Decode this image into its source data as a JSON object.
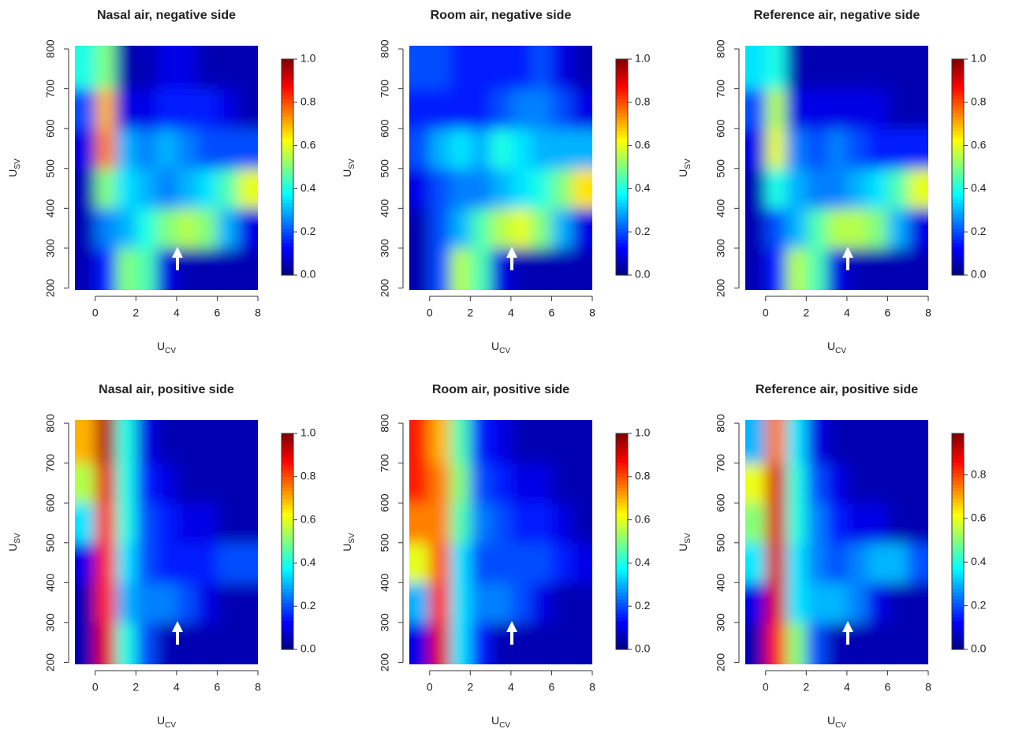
{
  "chart_data": [
    {
      "type": "heatmap",
      "title": "Nasal air, negative side",
      "xlabel": {
        "text": "U",
        "sub": "CV"
      },
      "ylabel": {
        "text": "U",
        "sub": "SV"
      },
      "xlim": [
        -1,
        8
      ],
      "ylim": [
        195,
        808
      ],
      "xticks": [
        0,
        2,
        4,
        6,
        8
      ],
      "yticks": [
        200,
        300,
        400,
        500,
        600,
        700,
        800
      ],
      "zlim": [
        0,
        1
      ],
      "zticks": [
        {
          "value": 0,
          "label": "0.0"
        },
        0.2,
        0.4,
        0.6,
        0.8,
        {
          "value": 1,
          "label": "1.0"
        }
      ],
      "colormap": "jet",
      "xbins": [
        -1,
        0,
        1,
        2,
        3,
        4,
        5,
        6,
        7,
        8
      ],
      "ybins": [
        200,
        300,
        400,
        500,
        600,
        700,
        800
      ],
      "values": [
        [
          0.05,
          0.15,
          0.5,
          0.45,
          0.1,
          0.05,
          0.05,
          0.05,
          0.05
        ],
        [
          0.05,
          0.25,
          0.3,
          0.4,
          0.5,
          0.55,
          0.5,
          0.3,
          0.1
        ],
        [
          0.05,
          0.5,
          0.35,
          0.3,
          0.25,
          0.3,
          0.35,
          0.45,
          0.6
        ],
        [
          0.1,
          0.75,
          0.3,
          0.25,
          0.3,
          0.25,
          0.2,
          0.2,
          0.2
        ],
        [
          0.2,
          0.7,
          0.1,
          0.1,
          0.15,
          0.15,
          0.15,
          0.1,
          0.05
        ],
        [
          0.4,
          0.5,
          0.05,
          0.05,
          0.1,
          0.1,
          0.05,
          0.05,
          0.05
        ]
      ]
    },
    {
      "type": "heatmap",
      "title": "Room air, negative side",
      "xlabel": {
        "text": "U",
        "sub": "CV"
      },
      "ylabel": {
        "text": "U",
        "sub": "SV"
      },
      "xlim": [
        -1,
        8
      ],
      "ylim": [
        195,
        808
      ],
      "xticks": [
        0,
        2,
        4,
        6,
        8
      ],
      "yticks": [
        200,
        300,
        400,
        500,
        600,
        700,
        800
      ],
      "zlim": [
        0,
        1
      ],
      "zticks": [
        {
          "value": 0,
          "label": "0.0"
        },
        0.2,
        0.4,
        0.6,
        0.8,
        {
          "value": 1,
          "label": "1.0"
        }
      ],
      "colormap": "jet",
      "xbins": [
        -1,
        0,
        1,
        2,
        3,
        4,
        5,
        6,
        7,
        8
      ],
      "ybins": [
        200,
        300,
        400,
        500,
        600,
        700,
        800
      ],
      "values": [
        [
          0.05,
          0.2,
          0.55,
          0.45,
          0.1,
          0.05,
          0.05,
          0.05,
          0.05
        ],
        [
          0.05,
          0.2,
          0.3,
          0.45,
          0.55,
          0.6,
          0.5,
          0.3,
          0.1
        ],
        [
          0.1,
          0.2,
          0.25,
          0.25,
          0.3,
          0.35,
          0.4,
          0.5,
          0.65
        ],
        [
          0.2,
          0.3,
          0.35,
          0.3,
          0.4,
          0.35,
          0.3,
          0.3,
          0.3
        ],
        [
          0.15,
          0.15,
          0.15,
          0.15,
          0.2,
          0.25,
          0.25,
          0.2,
          0.1
        ],
        [
          0.2,
          0.2,
          0.15,
          0.15,
          0.15,
          0.15,
          0.2,
          0.1,
          0.05
        ]
      ]
    },
    {
      "type": "heatmap",
      "title": "Reference air, negative side",
      "xlabel": {
        "text": "U",
        "sub": "CV"
      },
      "ylabel": {
        "text": "U",
        "sub": "SV"
      },
      "xlim": [
        -1,
        8
      ],
      "ylim": [
        195,
        808
      ],
      "xticks": [
        0,
        2,
        4,
        6,
        8
      ],
      "yticks": [
        200,
        300,
        400,
        500,
        600,
        700,
        800
      ],
      "zlim": [
        0,
        1
      ],
      "zticks": [
        {
          "value": 0,
          "label": "0.0"
        },
        0.2,
        0.4,
        0.6,
        0.8,
        {
          "value": 1,
          "label": "1.0"
        }
      ],
      "colormap": "jet",
      "xbins": [
        -1,
        0,
        1,
        2,
        3,
        4,
        5,
        6,
        7,
        8
      ],
      "ybins": [
        200,
        300,
        400,
        500,
        600,
        700,
        800
      ],
      "values": [
        [
          0.05,
          0.15,
          0.55,
          0.45,
          0.1,
          0.05,
          0.05,
          0.05,
          0.05
        ],
        [
          0.05,
          0.2,
          0.3,
          0.45,
          0.55,
          0.55,
          0.5,
          0.3,
          0.1
        ],
        [
          0.05,
          0.4,
          0.3,
          0.25,
          0.25,
          0.3,
          0.35,
          0.45,
          0.6
        ],
        [
          0.1,
          0.6,
          0.25,
          0.2,
          0.25,
          0.2,
          0.15,
          0.15,
          0.15
        ],
        [
          0.2,
          0.55,
          0.1,
          0.1,
          0.1,
          0.1,
          0.1,
          0.05,
          0.05
        ],
        [
          0.35,
          0.4,
          0.05,
          0.05,
          0.05,
          0.05,
          0.05,
          0.05,
          0.05
        ]
      ]
    },
    {
      "type": "heatmap",
      "title": "Nasal air, positive side",
      "xlabel": {
        "text": "U",
        "sub": "CV"
      },
      "ylabel": {
        "text": "U",
        "sub": "SV"
      },
      "xlim": [
        -1,
        8
      ],
      "ylim": [
        195,
        808
      ],
      "xticks": [
        0,
        2,
        4,
        6,
        8
      ],
      "yticks": [
        200,
        300,
        400,
        500,
        600,
        700,
        800
      ],
      "zlim": [
        0,
        1
      ],
      "zticks": [
        {
          "value": 0,
          "label": "0.0"
        },
        0.2,
        0.4,
        0.6,
        0.8,
        {
          "value": 1,
          "label": "1.0"
        }
      ],
      "colormap": "jet",
      "xbins": [
        -1,
        0,
        1,
        2,
        3,
        4,
        5,
        6,
        7,
        8
      ],
      "ybins": [
        200,
        300,
        400,
        500,
        600,
        700,
        800
      ],
      "values": [
        [
          0.05,
          0.9,
          0.4,
          0.2,
          0.05,
          0.05,
          0.05,
          0.05,
          0.05
        ],
        [
          0.05,
          0.85,
          0.3,
          0.25,
          0.25,
          0.2,
          0.1,
          0.05,
          0.05
        ],
        [
          0.1,
          0.85,
          0.35,
          0.2,
          0.15,
          0.15,
          0.15,
          0.2,
          0.2
        ],
        [
          0.35,
          0.85,
          0.4,
          0.2,
          0.15,
          0.1,
          0.1,
          0.05,
          0.05
        ],
        [
          0.55,
          0.9,
          0.4,
          0.15,
          0.1,
          0.05,
          0.05,
          0.05,
          0.05
        ],
        [
          0.7,
          0.95,
          0.4,
          0.1,
          0.05,
          0.05,
          0.05,
          0.05,
          0.05
        ]
      ]
    },
    {
      "type": "heatmap",
      "title": "Room air, positive side",
      "xlabel": {
        "text": "U",
        "sub": "CV"
      },
      "ylabel": {
        "text": "U",
        "sub": "SV"
      },
      "xlim": [
        -1,
        8
      ],
      "ylim": [
        195,
        808
      ],
      "xticks": [
        0,
        2,
        4,
        6,
        8
      ],
      "yticks": [
        200,
        300,
        400,
        500,
        600,
        700,
        800
      ],
      "zlim": [
        0,
        1
      ],
      "zticks": [
        {
          "value": 0,
          "label": "0.0"
        },
        0.2,
        0.4,
        0.6,
        0.8,
        {
          "value": 1,
          "label": "1.0"
        }
      ],
      "colormap": "jet",
      "xbins": [
        -1,
        0,
        1,
        2,
        3,
        4,
        5,
        6,
        7,
        8
      ],
      "ybins": [
        200,
        300,
        400,
        500,
        600,
        700,
        800
      ],
      "values": [
        [
          0.1,
          0.9,
          0.35,
          0.15,
          0.05,
          0.05,
          0.05,
          0.05,
          0.05
        ],
        [
          0.3,
          0.85,
          0.35,
          0.25,
          0.25,
          0.2,
          0.1,
          0.05,
          0.05
        ],
        [
          0.6,
          0.8,
          0.35,
          0.2,
          0.2,
          0.2,
          0.2,
          0.15,
          0.1
        ],
        [
          0.75,
          0.75,
          0.45,
          0.25,
          0.2,
          0.15,
          0.15,
          0.1,
          0.05
        ],
        [
          0.85,
          0.75,
          0.5,
          0.2,
          0.15,
          0.1,
          0.1,
          0.05,
          0.05
        ],
        [
          0.85,
          0.7,
          0.45,
          0.15,
          0.1,
          0.05,
          0.05,
          0.05,
          0.05
        ]
      ]
    },
    {
      "type": "heatmap",
      "title": "Reference air, positive side",
      "xlabel": {
        "text": "U",
        "sub": "CV"
      },
      "ylabel": {
        "text": "U",
        "sub": "SV"
      },
      "xlim": [
        -1,
        8
      ],
      "ylim": [
        195,
        808
      ],
      "xticks": [
        0,
        2,
        4,
        6,
        8
      ],
      "yticks": [
        200,
        300,
        400,
        500,
        600,
        700,
        800
      ],
      "zlim": [
        0,
        0.99
      ],
      "zticks": [
        {
          "value": 0,
          "label": "0.0"
        },
        0.2,
        0.4,
        0.6,
        0.8
      ],
      "colormap": "jet",
      "xbins": [
        -1,
        0,
        1,
        2,
        3,
        4,
        5,
        6,
        7,
        8
      ],
      "ybins": [
        200,
        300,
        400,
        500,
        600,
        700,
        800
      ],
      "values": [
        [
          0.05,
          0.85,
          0.5,
          0.2,
          0.05,
          0.05,
          0.05,
          0.05,
          0.05
        ],
        [
          0.1,
          0.9,
          0.35,
          0.3,
          0.3,
          0.25,
          0.1,
          0.05,
          0.05
        ],
        [
          0.35,
          0.9,
          0.35,
          0.25,
          0.2,
          0.25,
          0.3,
          0.3,
          0.2
        ],
        [
          0.5,
          0.9,
          0.4,
          0.25,
          0.15,
          0.1,
          0.1,
          0.05,
          0.05
        ],
        [
          0.6,
          0.9,
          0.4,
          0.2,
          0.1,
          0.05,
          0.05,
          0.05,
          0.05
        ],
        [
          0.3,
          0.75,
          0.35,
          0.1,
          0.05,
          0.05,
          0.05,
          0.05,
          0.05
        ]
      ]
    }
  ]
}
